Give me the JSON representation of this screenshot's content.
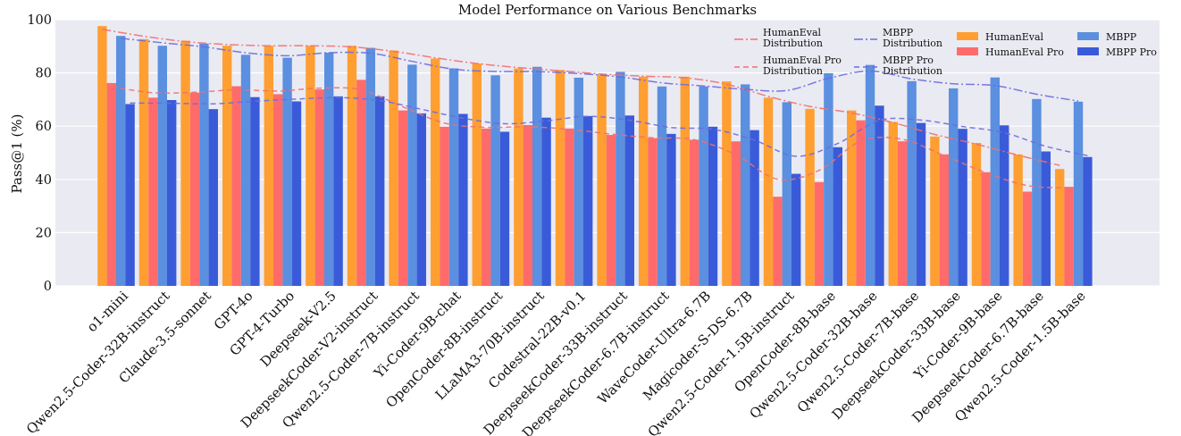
{
  "chart_data": {
    "type": "bar",
    "title": "Model Performance on Various Benchmarks",
    "ylabel": "Pass@1 (%)",
    "xlabel": "",
    "ylim": [
      0,
      100
    ],
    "yticks": [
      0,
      20,
      40,
      60,
      80,
      100
    ],
    "grid": true,
    "legend_placement": "top-right",
    "categories": [
      "o1-mini",
      "Qwen2.5-Coder-32B-instruct",
      "Claude-3.5-sonnet",
      "GPT-4o",
      "GPT-4-Turbo",
      "Deepseek-V2.5",
      "DeepseekCoder-V2-instruct",
      "Qwen2.5-Coder-7B-instruct",
      "Yi-Coder-9B-chat",
      "OpenCoder-8B-instruct",
      "LLaMA3-70B-instruct",
      "Codestral-22B-v0.1",
      "DeepseekCoder-33B-instruct",
      "DeepseekCoder-6.7B-instruct",
      "WaveCoder-Ultra-6.7B",
      "Magicoder-S-DS-6.7B",
      "Qwen2.5-Coder-1.5B-instruct",
      "OpenCoder-8B-base",
      "Qwen2.5-Coder-32B-base",
      "Qwen2.5-Coder-7B-base",
      "DeepseekCoder-33B-base",
      "Yi-Coder-9B-base",
      "DeepseekCoder-6.7B-base",
      "Qwen2.5-Coder-1.5B-base"
    ],
    "series": [
      {
        "name": "HumanEval",
        "color": "#FF9F31",
        "values": [
          97.6,
          92.7,
          92.1,
          90.2,
          90.2,
          90.2,
          90.2,
          88.4,
          85.4,
          83.5,
          81.7,
          81.1,
          79.3,
          78.6,
          78.6,
          76.8,
          70.7,
          66.5,
          65.9,
          61.6,
          56.1,
          53.7,
          49.4,
          43.9
        ]
      },
      {
        "name": "HumanEval Pro",
        "color": "#FF6B6B",
        "values": [
          76.2,
          70.7,
          72.6,
          75.0,
          72.0,
          73.8,
          77.4,
          65.9,
          59.8,
          59.1,
          60.4,
          59.1,
          56.7,
          55.5,
          54.9,
          54.3,
          33.5,
          39.0,
          62.2,
          54.3,
          49.4,
          42.7,
          35.4,
          37.2
        ]
      },
      {
        "name": "MBPP",
        "color": "#5B8FE0",
        "values": [
          93.9,
          90.2,
          91.0,
          86.8,
          85.7,
          87.6,
          89.4,
          83.1,
          81.7,
          79.1,
          82.3,
          78.2,
          80.4,
          74.9,
          74.9,
          75.7,
          69.0,
          79.9,
          83.0,
          76.9,
          74.2,
          78.3,
          70.2,
          69.2
        ]
      },
      {
        "name": "MBPP Pro",
        "color": "#3A5BD9",
        "values": [
          68.3,
          69.8,
          66.4,
          70.9,
          69.3,
          71.2,
          71.2,
          64.8,
          64.6,
          57.9,
          63.2,
          63.8,
          64.0,
          57.1,
          59.8,
          58.5,
          42.1,
          52.1,
          67.7,
          61.2,
          59.0,
          60.3,
          50.5,
          48.4
        ]
      }
    ],
    "distribution_lines": [
      {
        "name": "HumanEval\nDistribution",
        "color": "#F07070",
        "dash": "dashdot",
        "of_series": "HumanEval"
      },
      {
        "name": "HumanEval Pro\nDistribution",
        "color": "#F07070",
        "dash": "dashed",
        "of_series": "HumanEval Pro"
      },
      {
        "name": "MBPP\nDistribution",
        "color": "#6C6CE0",
        "dash": "dashdot",
        "of_series": "MBPP"
      },
      {
        "name": "MBPP Pro\nDistribution",
        "color": "#6C6CE0",
        "dash": "dashed",
        "of_series": "MBPP Pro"
      }
    ],
    "colors": {
      "plot_background": "#EAEAF2",
      "grid": "#FFFFFF"
    }
  }
}
